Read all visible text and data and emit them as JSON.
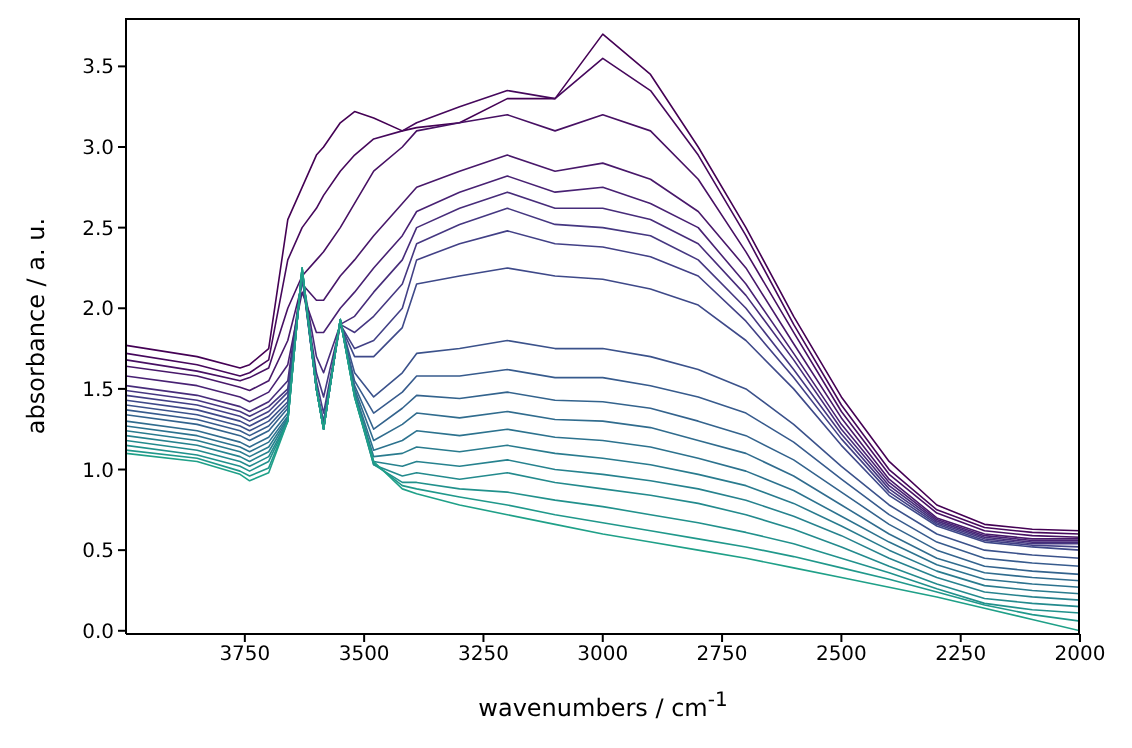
{
  "chart_data": {
    "type": "line",
    "xlabel": "wavenumbers / cm$^{-1}$",
    "ylabel": "absorbance / a. u.",
    "x": [
      3999,
      3850,
      3760,
      3740,
      3700,
      3660,
      3630,
      3600,
      3585,
      3550,
      3520,
      3480,
      3420,
      3390,
      3300,
      3200,
      3100,
      3000,
      2900,
      2800,
      2700,
      2600,
      2500,
      2400,
      2300,
      2200,
      2100,
      2000
    ],
    "xlim": [
      3999,
      2000
    ],
    "xticks": [
      3750,
      3500,
      3250,
      3000,
      2750,
      2500,
      2250,
      2000
    ],
    "ylim": [
      -0.02,
      3.8
    ],
    "yticks": [
      {
        "value": 0,
        "label": "0.0"
      },
      {
        "value": 0.5,
        "label": "0.5"
      },
      {
        "value": 1,
        "label": "1.0"
      },
      {
        "value": 1.5,
        "label": "1.5"
      },
      {
        "value": 2,
        "label": "2.0"
      },
      {
        "value": 2.5,
        "label": "2.5"
      },
      {
        "value": 3,
        "label": "3.0"
      },
      {
        "value": 3.5,
        "label": "3.5"
      }
    ],
    "grid": false,
    "marker": "none",
    "line_style": "solid",
    "series": [
      {
        "color": "#440154",
        "values": [
          1.77,
          1.7,
          1.63,
          1.65,
          1.75,
          2.55,
          2.75,
          2.95,
          3.0,
          3.15,
          3.22,
          3.18,
          3.1,
          3.12,
          3.15,
          3.3,
          3.3,
          3.7,
          3.45,
          3.0,
          2.5,
          1.95,
          1.45,
          1.05,
          0.78,
          0.66,
          0.63,
          0.62
        ]
      },
      {
        "color": "#46085c",
        "values": [
          1.72,
          1.65,
          1.58,
          1.6,
          1.68,
          2.3,
          2.5,
          2.62,
          2.7,
          2.85,
          2.95,
          3.05,
          3.1,
          3.15,
          3.25,
          3.35,
          3.3,
          3.55,
          3.35,
          2.95,
          2.45,
          1.9,
          1.4,
          1.0,
          0.75,
          0.64,
          0.61,
          0.6
        ]
      },
      {
        "color": "#471063",
        "values": [
          1.68,
          1.61,
          1.55,
          1.57,
          1.63,
          2.0,
          2.2,
          2.3,
          2.35,
          2.5,
          2.65,
          2.85,
          3.0,
          3.1,
          3.15,
          3.2,
          3.1,
          3.2,
          3.1,
          2.8,
          2.35,
          1.85,
          1.36,
          0.97,
          0.73,
          0.62,
          0.59,
          0.58
        ]
      },
      {
        "color": "#48186a",
        "values": [
          1.64,
          1.58,
          1.51,
          1.49,
          1.55,
          1.8,
          2.15,
          2.05,
          2.05,
          2.2,
          2.3,
          2.45,
          2.65,
          2.75,
          2.85,
          2.95,
          2.85,
          2.9,
          2.8,
          2.6,
          2.25,
          1.78,
          1.32,
          0.94,
          0.7,
          0.6,
          0.57,
          0.57
        ]
      },
      {
        "color": "#482173",
        "values": [
          1.58,
          1.52,
          1.45,
          1.42,
          1.48,
          1.65,
          2.1,
          1.85,
          1.85,
          2.0,
          2.1,
          2.25,
          2.45,
          2.6,
          2.72,
          2.82,
          2.72,
          2.75,
          2.65,
          2.5,
          2.15,
          1.72,
          1.28,
          0.92,
          0.69,
          0.59,
          0.56,
          0.56
        ]
      },
      {
        "color": "#472c7a",
        "values": [
          1.52,
          1.46,
          1.39,
          1.36,
          1.42,
          1.55,
          2.2,
          1.7,
          1.6,
          1.9,
          1.95,
          2.1,
          2.3,
          2.5,
          2.62,
          2.72,
          2.62,
          2.62,
          2.55,
          2.4,
          2.08,
          1.68,
          1.25,
          0.9,
          0.68,
          0.58,
          0.55,
          0.55
        ]
      },
      {
        "color": "#453781",
        "values": [
          1.49,
          1.43,
          1.36,
          1.33,
          1.39,
          1.5,
          2.2,
          1.6,
          1.45,
          1.9,
          1.85,
          1.95,
          2.15,
          2.4,
          2.52,
          2.62,
          2.52,
          2.5,
          2.45,
          2.3,
          2.0,
          1.62,
          1.22,
          0.88,
          0.67,
          0.57,
          0.54,
          0.54
        ]
      },
      {
        "color": "#424086",
        "values": [
          1.46,
          1.4,
          1.33,
          1.3,
          1.36,
          1.48,
          2.2,
          1.55,
          1.35,
          1.9,
          1.75,
          1.8,
          2.0,
          2.3,
          2.4,
          2.48,
          2.4,
          2.38,
          2.32,
          2.2,
          1.92,
          1.57,
          1.19,
          0.86,
          0.66,
          0.56,
          0.53,
          0.52
        ]
      },
      {
        "color": "#3e4989",
        "values": [
          1.43,
          1.37,
          1.3,
          1.27,
          1.33,
          1.45,
          2.2,
          1.5,
          1.3,
          1.9,
          1.7,
          1.7,
          1.88,
          2.15,
          2.2,
          2.25,
          2.2,
          2.18,
          2.12,
          2.02,
          1.8,
          1.5,
          1.15,
          0.84,
          0.65,
          0.55,
          0.52,
          0.5
        ]
      },
      {
        "color": "#3b528b",
        "values": [
          1.4,
          1.34,
          1.27,
          1.24,
          1.3,
          1.42,
          2.2,
          1.5,
          1.28,
          1.92,
          1.6,
          1.45,
          1.6,
          1.72,
          1.75,
          1.8,
          1.75,
          1.75,
          1.7,
          1.62,
          1.5,
          1.28,
          1.02,
          0.78,
          0.6,
          0.5,
          0.47,
          0.45
        ]
      },
      {
        "color": "#375b8d",
        "values": [
          1.37,
          1.31,
          1.24,
          1.21,
          1.27,
          1.4,
          2.22,
          1.5,
          1.27,
          1.92,
          1.55,
          1.35,
          1.48,
          1.58,
          1.58,
          1.62,
          1.57,
          1.57,
          1.52,
          1.45,
          1.35,
          1.17,
          0.94,
          0.72,
          0.55,
          0.45,
          0.42,
          0.4
        ]
      },
      {
        "color": "#33638d",
        "values": [
          1.34,
          1.28,
          1.21,
          1.18,
          1.24,
          1.38,
          2.22,
          1.5,
          1.26,
          1.92,
          1.52,
          1.25,
          1.38,
          1.46,
          1.44,
          1.48,
          1.43,
          1.42,
          1.38,
          1.3,
          1.21,
          1.06,
          0.86,
          0.66,
          0.5,
          0.4,
          0.37,
          0.35
        ]
      },
      {
        "color": "#306c8e",
        "values": [
          1.3,
          1.24,
          1.17,
          1.14,
          1.2,
          1.35,
          2.23,
          1.5,
          1.25,
          1.93,
          1.5,
          1.18,
          1.28,
          1.35,
          1.32,
          1.36,
          1.31,
          1.3,
          1.26,
          1.18,
          1.1,
          0.96,
          0.78,
          0.6,
          0.45,
          0.36,
          0.33,
          0.31
        ]
      },
      {
        "color": "#2c728e",
        "values": [
          1.27,
          1.21,
          1.14,
          1.11,
          1.17,
          1.33,
          2.23,
          1.5,
          1.25,
          1.93,
          1.48,
          1.12,
          1.18,
          1.24,
          1.21,
          1.25,
          1.2,
          1.18,
          1.14,
          1.07,
          0.99,
          0.87,
          0.71,
          0.55,
          0.41,
          0.32,
          0.29,
          0.27
        ]
      },
      {
        "color": "#297b8e",
        "values": [
          1.24,
          1.18,
          1.11,
          1.08,
          1.14,
          1.32,
          2.24,
          1.5,
          1.25,
          1.93,
          1.47,
          1.08,
          1.1,
          1.14,
          1.11,
          1.15,
          1.1,
          1.07,
          1.03,
          0.97,
          0.9,
          0.79,
          0.65,
          0.5,
          0.37,
          0.28,
          0.25,
          0.23
        ]
      },
      {
        "color": "#26828e",
        "values": [
          1.21,
          1.15,
          1.08,
          1.05,
          1.11,
          1.31,
          2.24,
          1.5,
          1.25,
          1.93,
          1.46,
          1.05,
          1.02,
          1.05,
          1.02,
          1.06,
          1.0,
          0.97,
          0.93,
          0.88,
          0.81,
          0.71,
          0.59,
          0.45,
          0.33,
          0.24,
          0.21,
          0.19
        ]
      },
      {
        "color": "#238a8d",
        "values": [
          1.18,
          1.12,
          1.05,
          1.02,
          1.08,
          1.3,
          2.25,
          1.5,
          1.25,
          1.93,
          1.46,
          1.03,
          0.96,
          0.98,
          0.94,
          0.98,
          0.92,
          0.88,
          0.84,
          0.79,
          0.72,
          0.63,
          0.52,
          0.4,
          0.29,
          0.2,
          0.17,
          0.15
        ]
      },
      {
        "color": "#21918c",
        "values": [
          1.15,
          1.09,
          1.02,
          0.99,
          1.05,
          1.3,
          2.25,
          1.5,
          1.25,
          1.93,
          1.45,
          1.03,
          0.92,
          0.92,
          0.88,
          0.86,
          0.81,
          0.77,
          0.72,
          0.67,
          0.61,
          0.54,
          0.45,
          0.36,
          0.26,
          0.17,
          0.13,
          0.11
        ]
      },
      {
        "color": "#20988b",
        "values": [
          1.12,
          1.07,
          0.99,
          0.96,
          1.01,
          1.3,
          2.25,
          1.5,
          1.25,
          1.93,
          1.45,
          1.04,
          0.9,
          0.88,
          0.83,
          0.78,
          0.72,
          0.67,
          0.62,
          0.57,
          0.52,
          0.46,
          0.39,
          0.32,
          0.24,
          0.16,
          0.1,
          0.06
        ]
      },
      {
        "color": "#1fa088",
        "values": [
          1.1,
          1.05,
          0.97,
          0.93,
          0.98,
          1.3,
          2.25,
          1.5,
          1.25,
          1.93,
          1.45,
          1.05,
          0.88,
          0.85,
          0.78,
          0.72,
          0.66,
          0.6,
          0.55,
          0.5,
          0.45,
          0.39,
          0.33,
          0.27,
          0.21,
          0.14,
          0.07,
          0.0
        ]
      }
    ]
  }
}
